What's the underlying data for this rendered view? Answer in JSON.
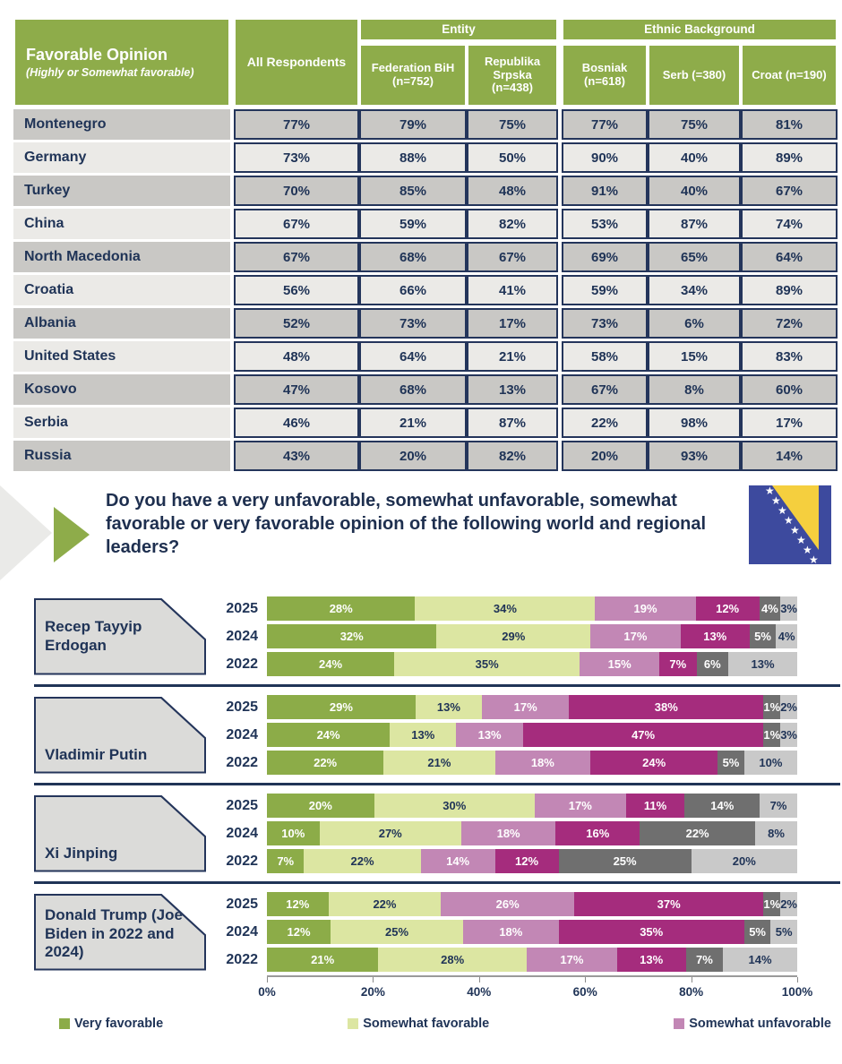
{
  "colors": {
    "header_green": "#8EAC4A",
    "navy": "#203457",
    "row_dark_gray": "#C9C8C5",
    "row_light_gray": "#EBEAE7",
    "flag_blue": "#3D4A9E",
    "flag_yellow": "#F5CF3E"
  },
  "table": {
    "title": "Favorable Opinion",
    "subtitle": "(Highly or Somewhat favorable)",
    "col_groups": [
      "Entity",
      "Ethnic Background"
    ],
    "columns": [
      "All Respondents",
      "Federation BiH (n=752)",
      "Republika Srpska (n=438)",
      "Bosniak (n=618)",
      "Serb (=380)",
      "Croat (n=190)"
    ],
    "rows": [
      {
        "label": "Montenegro",
        "values": [
          "77%",
          "79%",
          "75%",
          "77%",
          "75%",
          "81%"
        ]
      },
      {
        "label": "Germany",
        "values": [
          "73%",
          "88%",
          "50%",
          "90%",
          "40%",
          "89%"
        ]
      },
      {
        "label": "Turkey",
        "values": [
          "70%",
          "85%",
          "48%",
          "91%",
          "40%",
          "67%"
        ]
      },
      {
        "label": "China",
        "values": [
          "67%",
          "59%",
          "82%",
          "53%",
          "87%",
          "74%"
        ]
      },
      {
        "label": "North Macedonia",
        "values": [
          "67%",
          "68%",
          "67%",
          "69%",
          "65%",
          "64%"
        ]
      },
      {
        "label": "Croatia",
        "values": [
          "56%",
          "66%",
          "41%",
          "59%",
          "34%",
          "89%"
        ]
      },
      {
        "label": "Albania",
        "values": [
          "52%",
          "73%",
          "17%",
          "73%",
          "6%",
          "72%"
        ]
      },
      {
        "label": "United States",
        "values": [
          "48%",
          "64%",
          "21%",
          "58%",
          "15%",
          "83%"
        ]
      },
      {
        "label": "Kosovo",
        "values": [
          "47%",
          "68%",
          "13%",
          "67%",
          "8%",
          "60%"
        ]
      },
      {
        "label": "Serbia",
        "values": [
          "46%",
          "21%",
          "87%",
          "22%",
          "98%",
          "17%"
        ]
      },
      {
        "label": "Russia",
        "values": [
          "43%",
          "20%",
          "82%",
          "20%",
          "93%",
          "14%"
        ]
      }
    ]
  },
  "question": {
    "text": "Do you have a very unfavorable, somewhat unfavorable, somewhat favorable or very favorable opinion of the following world and regional leaders?"
  },
  "chart_data": {
    "type": "bar",
    "stacked": true,
    "orientation": "horizontal",
    "unit": "%",
    "xlim": [
      0,
      100
    ],
    "x_ticks": [
      "0%",
      "20%",
      "40%",
      "60%",
      "80%",
      "100%"
    ],
    "segment_colors": [
      "#8CAC48",
      "#DCE6A2",
      "#C287B5",
      "#A52C7D",
      "#6F6F6F",
      "#C9C9C9"
    ],
    "legend": [
      {
        "label": "Very favorable",
        "color": "#8CAC48"
      },
      {
        "label": "Somewhat favorable",
        "color": "#DCE6A2"
      },
      {
        "label": "Somewhat unfavorable",
        "color": "#C287B5"
      }
    ],
    "groups": [
      {
        "leader": "Recep Tayyip Erdogan",
        "bars": [
          {
            "year": "2025",
            "values": [
              28,
              34,
              19,
              12,
              4,
              3
            ]
          },
          {
            "year": "2024",
            "values": [
              32,
              29,
              17,
              13,
              5,
              4
            ]
          },
          {
            "year": "2022",
            "values": [
              24,
              35,
              15,
              7,
              6,
              13
            ]
          }
        ]
      },
      {
        "leader": "Vladimir Putin",
        "bars": [
          {
            "year": "2025",
            "values": [
              29,
              13,
              17,
              38,
              1,
              2
            ]
          },
          {
            "year": "2024",
            "values": [
              24,
              13,
              13,
              47,
              1,
              3
            ]
          },
          {
            "year": "2022",
            "values": [
              22,
              21,
              18,
              24,
              5,
              10
            ]
          }
        ]
      },
      {
        "leader": "Xi Jinping",
        "bars": [
          {
            "year": "2025",
            "values": [
              20,
              30,
              17,
              11,
              14,
              7
            ]
          },
          {
            "year": "2024",
            "values": [
              10,
              27,
              18,
              16,
              22,
              8
            ]
          },
          {
            "year": "2022",
            "values": [
              7,
              22,
              14,
              12,
              25,
              20
            ]
          }
        ]
      },
      {
        "leader": "Donald Trump (Joe Biden in 2022 and 2024)",
        "bars": [
          {
            "year": "2025",
            "values": [
              12,
              22,
              26,
              37,
              1,
              2
            ]
          },
          {
            "year": "2024",
            "values": [
              12,
              25,
              18,
              35,
              5,
              5
            ]
          },
          {
            "year": "2022",
            "values": [
              21,
              28,
              17,
              13,
              7,
              14
            ]
          }
        ]
      }
    ]
  }
}
